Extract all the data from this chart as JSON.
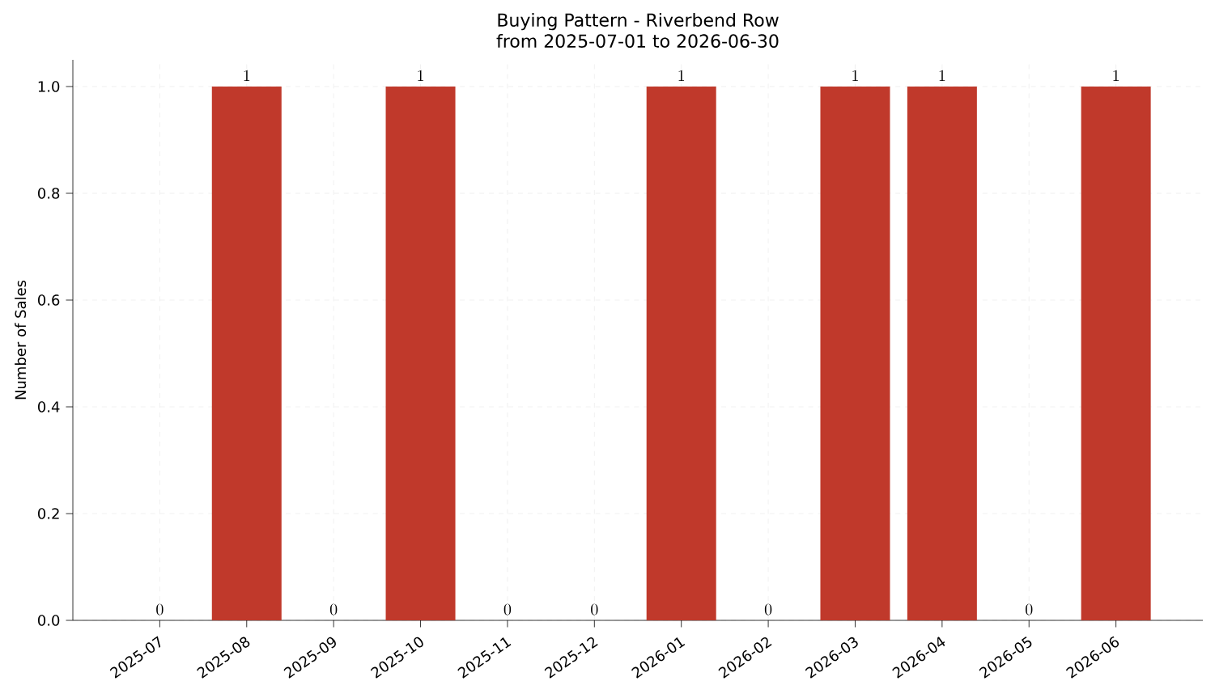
{
  "chart_data": {
    "type": "bar",
    "title": "Buying Pattern - Riverbend Row",
    "subtitle": "from 2025-07-01 to 2026-06-30",
    "ylabel": "Number of Sales",
    "categories": [
      "2025-07",
      "2025-08",
      "2025-09",
      "2025-10",
      "2025-11",
      "2025-12",
      "2026-01",
      "2026-02",
      "2026-03",
      "2026-04",
      "2026-05",
      "2026-06"
    ],
    "values": [
      0,
      1,
      0,
      1,
      0,
      0,
      1,
      0,
      1,
      1,
      0,
      1
    ],
    "color": "#c0392b",
    "ylim": [
      0,
      1.05
    ],
    "yticks": [
      {
        "value": 0,
        "label": "0.0"
      },
      {
        "value": 0.2,
        "label": "0.2"
      },
      {
        "value": 0.4,
        "label": "0.4"
      },
      {
        "value": 0.6,
        "label": "0.6"
      },
      {
        "value": 0.8,
        "label": "0.8"
      },
      {
        "value": 1.0,
        "label": "1.0"
      }
    ],
    "grid": true,
    "data_labels": true
  }
}
